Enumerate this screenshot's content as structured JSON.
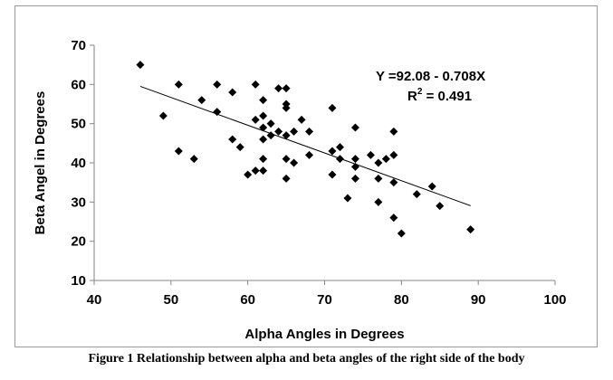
{
  "chart_data": {
    "type": "scatter",
    "title": "",
    "xlabel": "Alpha Angles in Degrees",
    "ylabel": "Beta Angel in Degrees",
    "xlim": [
      40,
      100
    ],
    "ylim": [
      10,
      70
    ],
    "x_ticks": [
      "40",
      "50",
      "60",
      "70",
      "80",
      "90",
      "100"
    ],
    "y_ticks": [
      "10",
      "20",
      "30",
      "40",
      "50",
      "60",
      "70"
    ],
    "grid": false,
    "legend": "none",
    "marker_color": "#000000",
    "marker": "diamond",
    "points": [
      [
        46,
        65
      ],
      [
        49,
        52
      ],
      [
        51,
        60
      ],
      [
        51,
        43
      ],
      [
        53,
        41
      ],
      [
        54,
        56
      ],
      [
        56,
        60
      ],
      [
        56,
        53
      ],
      [
        58,
        58
      ],
      [
        58,
        46
      ],
      [
        59,
        44
      ],
      [
        60,
        37
      ],
      [
        61,
        60
      ],
      [
        61,
        51
      ],
      [
        61,
        38
      ],
      [
        62,
        56
      ],
      [
        62,
        52
      ],
      [
        62,
        49
      ],
      [
        62,
        46
      ],
      [
        62,
        41
      ],
      [
        62,
        38
      ],
      [
        63,
        50
      ],
      [
        63,
        47
      ],
      [
        64,
        59
      ],
      [
        64,
        48
      ],
      [
        65,
        59
      ],
      [
        65,
        55
      ],
      [
        65,
        54
      ],
      [
        65,
        47
      ],
      [
        65,
        41
      ],
      [
        65,
        36
      ],
      [
        66,
        48
      ],
      [
        66,
        40
      ],
      [
        67,
        51
      ],
      [
        68,
        48
      ],
      [
        68,
        42
      ],
      [
        71,
        54
      ],
      [
        71,
        43
      ],
      [
        71,
        37
      ],
      [
        72,
        44
      ],
      [
        72,
        41
      ],
      [
        73,
        31
      ],
      [
        74,
        49
      ],
      [
        74,
        41
      ],
      [
        74,
        39
      ],
      [
        74,
        36
      ],
      [
        76,
        42
      ],
      [
        77,
        40
      ],
      [
        77,
        36
      ],
      [
        77,
        30
      ],
      [
        78,
        41
      ],
      [
        79,
        48
      ],
      [
        79,
        42
      ],
      [
        79,
        35
      ],
      [
        79,
        26
      ],
      [
        80,
        22
      ],
      [
        82,
        32
      ],
      [
        84,
        34
      ],
      [
        85,
        29
      ],
      [
        89,
        23
      ]
    ],
    "trendline": {
      "x_range": [
        46,
        89
      ],
      "intercept": 92.08,
      "slope": -0.708,
      "color": "#000000"
    },
    "annotations": {
      "equation": "Y =92.08 - 0.708X",
      "r_squared_label": "R",
      "r_squared_sup": "2",
      "r_squared_value": " = 0.491"
    }
  },
  "caption": "Figure 1 Relationship between alpha and beta angles of the right side of the body"
}
